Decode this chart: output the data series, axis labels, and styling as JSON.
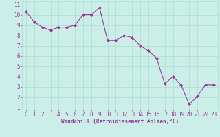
{
  "x": [
    0,
    1,
    2,
    3,
    4,
    5,
    6,
    7,
    8,
    9,
    10,
    11,
    12,
    13,
    14,
    15,
    16,
    17,
    18,
    19,
    20,
    21,
    22,
    23
  ],
  "y": [
    10.3,
    9.3,
    8.8,
    8.5,
    8.8,
    8.8,
    9.0,
    10.0,
    10.0,
    10.7,
    7.5,
    7.5,
    8.0,
    7.8,
    7.0,
    6.5,
    5.8,
    3.3,
    4.0,
    3.2,
    1.3,
    2.1,
    3.2,
    3.2
  ],
  "line_color": "#993399",
  "marker": "D",
  "marker_size": 2,
  "bg_color": "#cceee8",
  "grid_color": "#aaddcc",
  "xlabel": "Windchill (Refroidissement éolien,°C)",
  "xlabel_color": "#993399",
  "tick_color": "#993399",
  "ylim_min": 1,
  "ylim_max": 11,
  "xlim_min": 0,
  "xlim_max": 23,
  "yticks": [
    1,
    2,
    3,
    4,
    5,
    6,
    7,
    8,
    9,
    10,
    11
  ],
  "xticks": [
    0,
    1,
    2,
    3,
    4,
    5,
    6,
    7,
    8,
    9,
    10,
    11,
    12,
    13,
    14,
    15,
    16,
    17,
    18,
    19,
    20,
    21,
    22,
    23
  ],
  "tick_fontsize": 5.5,
  "xlabel_fontsize": 5.5
}
